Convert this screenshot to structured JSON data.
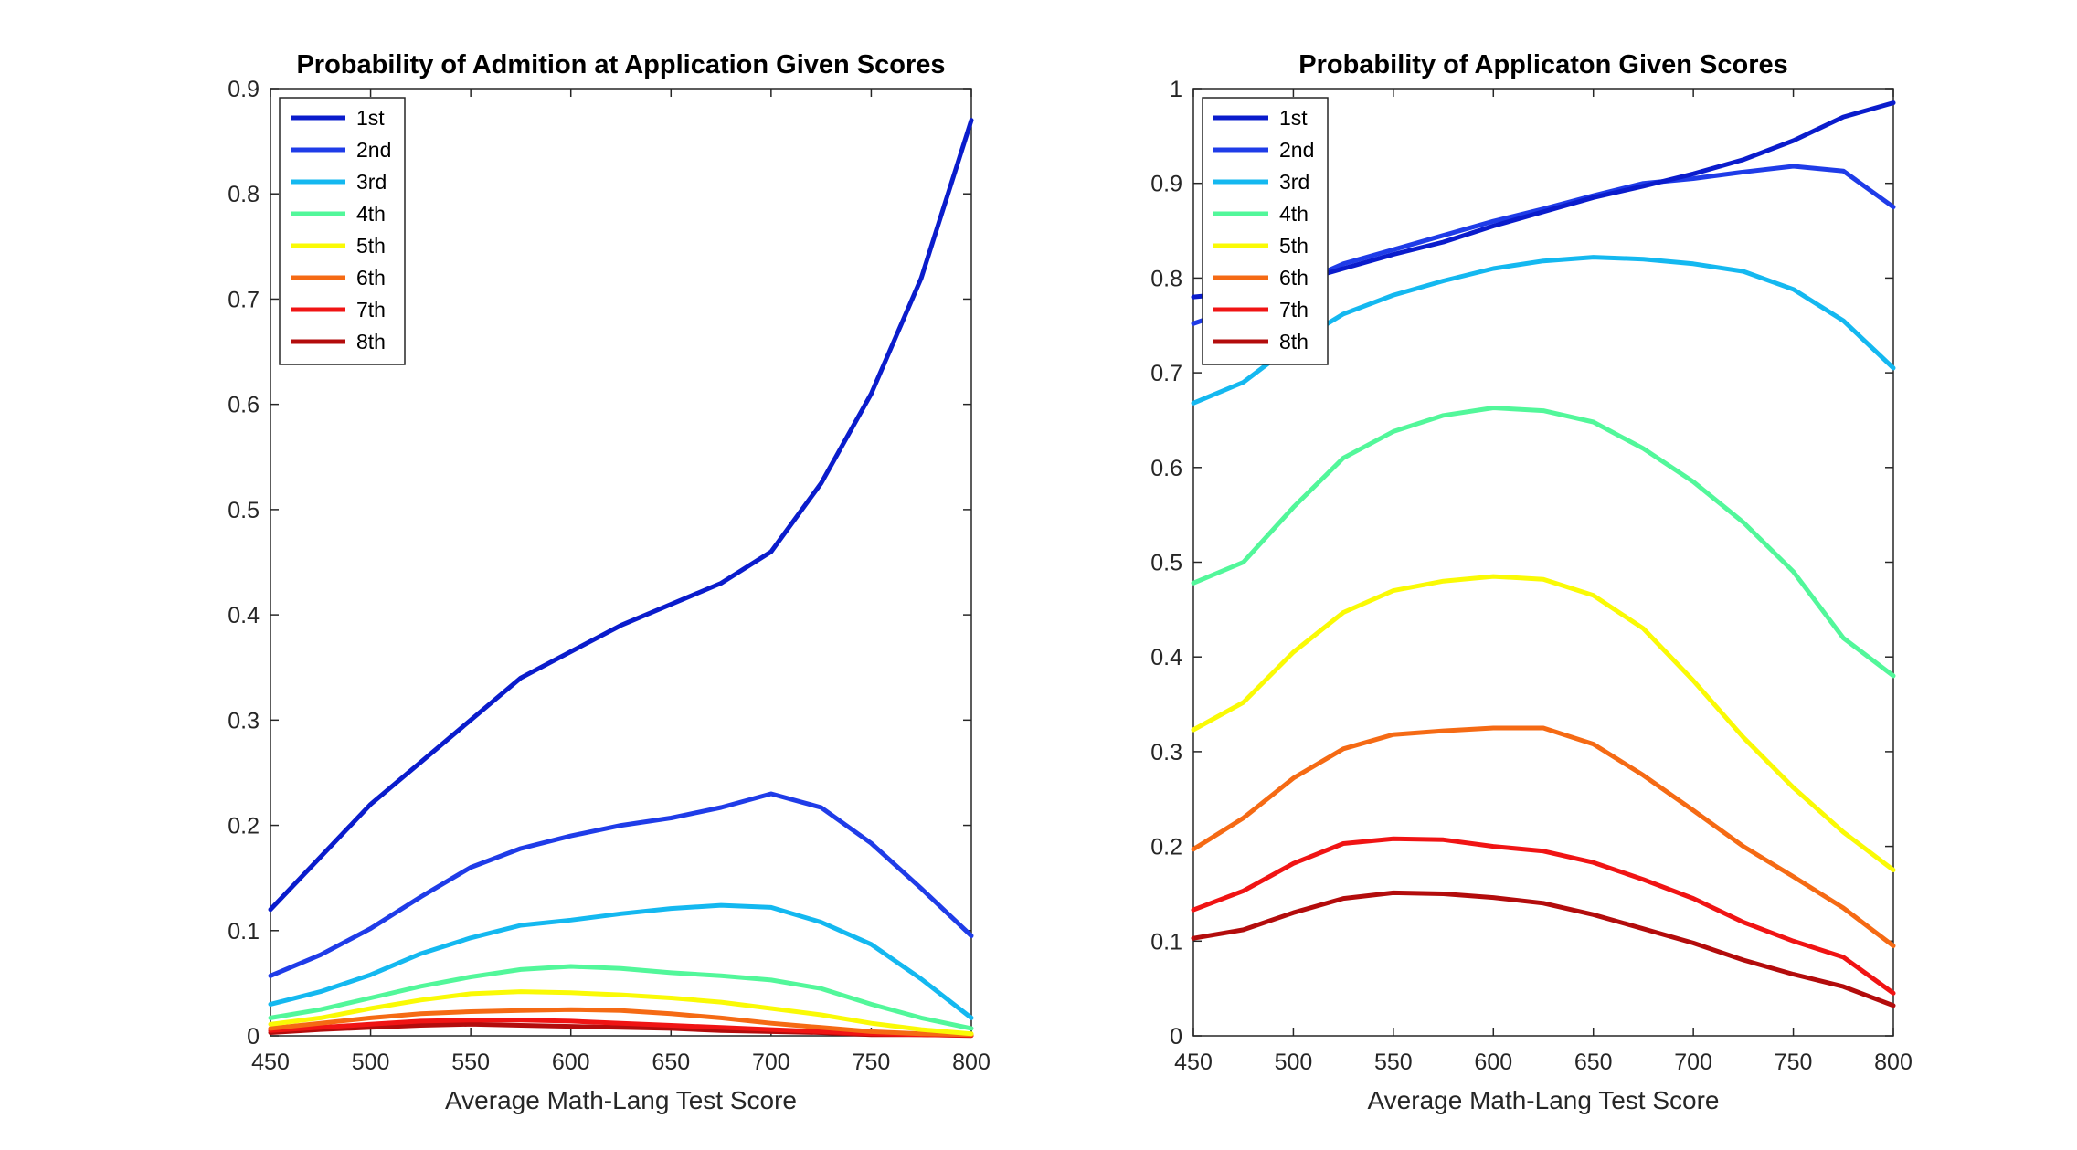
{
  "chart_data": [
    {
      "type": "line",
      "title": "Probability of Admition at Application Given Scores",
      "xlabel": "Average Math-Lang Test Score",
      "ylabel": "",
      "xlim": [
        450,
        800
      ],
      "ylim": [
        0,
        0.9
      ],
      "xticks": [
        "450",
        "500",
        "550",
        "600",
        "650",
        "700",
        "750",
        "800"
      ],
      "yticks": [
        "0",
        "0.1",
        "0.2",
        "0.3",
        "0.4",
        "0.5",
        "0.6",
        "0.7",
        "0.8",
        "0.9"
      ],
      "grid": false,
      "legend_position": "top-left",
      "x": [
        450,
        475,
        500,
        525,
        550,
        575,
        600,
        625,
        650,
        675,
        700,
        725,
        750,
        775,
        800
      ],
      "series": [
        {
          "name": "1st",
          "color": "#0a1ccc",
          "values": [
            0.12,
            0.17,
            0.22,
            0.26,
            0.3,
            0.34,
            0.365,
            0.39,
            0.41,
            0.43,
            0.46,
            0.525,
            0.61,
            0.72,
            0.87
          ]
        },
        {
          "name": "2nd",
          "color": "#1f3ce8",
          "values": [
            0.057,
            0.077,
            0.102,
            0.132,
            0.16,
            0.178,
            0.19,
            0.2,
            0.207,
            0.217,
            0.23,
            0.217,
            0.183,
            0.14,
            0.095
          ]
        },
        {
          "name": "3rd",
          "color": "#14b8f0",
          "values": [
            0.03,
            0.042,
            0.058,
            0.078,
            0.093,
            0.105,
            0.11,
            0.116,
            0.121,
            0.124,
            0.122,
            0.108,
            0.087,
            0.054,
            0.017
          ]
        },
        {
          "name": "4th",
          "color": "#52f79a",
          "values": [
            0.017,
            0.025,
            0.036,
            0.047,
            0.056,
            0.063,
            0.066,
            0.064,
            0.06,
            0.057,
            0.053,
            0.045,
            0.03,
            0.017,
            0.007
          ]
        },
        {
          "name": "5th",
          "color": "#fafa05",
          "values": [
            0.011,
            0.017,
            0.026,
            0.034,
            0.04,
            0.042,
            0.041,
            0.039,
            0.036,
            0.032,
            0.026,
            0.02,
            0.012,
            0.006,
            0.002
          ]
        },
        {
          "name": "6th",
          "color": "#f56a14",
          "values": [
            0.007,
            0.012,
            0.017,
            0.021,
            0.023,
            0.024,
            0.025,
            0.024,
            0.021,
            0.017,
            0.012,
            0.008,
            0.004,
            0.002,
            0.001
          ]
        },
        {
          "name": "7th",
          "color": "#f01414",
          "values": [
            0.005,
            0.008,
            0.011,
            0.014,
            0.015,
            0.015,
            0.014,
            0.012,
            0.01,
            0.008,
            0.006,
            0.004,
            0.002,
            0.001,
            0.0005
          ]
        },
        {
          "name": "8th",
          "color": "#b30c0c",
          "values": [
            0.003,
            0.006,
            0.008,
            0.01,
            0.011,
            0.01,
            0.009,
            0.008,
            0.007,
            0.005,
            0.004,
            0.003,
            0.001,
            0.001,
            0.0003
          ]
        }
      ]
    },
    {
      "type": "line",
      "title": "Probability of Applicaton Given Scores",
      "xlabel": "Average Math-Lang Test Score",
      "ylabel": "",
      "xlim": [
        450,
        800
      ],
      "ylim": [
        0,
        1
      ],
      "xticks": [
        "450",
        "500",
        "550",
        "600",
        "650",
        "700",
        "750",
        "800"
      ],
      "yticks": [
        "0",
        "0.1",
        "0.2",
        "0.3",
        "0.4",
        "0.5",
        "0.6",
        "0.7",
        "0.8",
        "0.9",
        "1"
      ],
      "grid": false,
      "legend_position": "top-left",
      "x": [
        450,
        475,
        500,
        525,
        550,
        575,
        600,
        625,
        650,
        675,
        700,
        725,
        750,
        775,
        800
      ],
      "series": [
        {
          "name": "1st",
          "color": "#0a1ccc",
          "values": [
            0.78,
            0.785,
            0.795,
            0.81,
            0.825,
            0.838,
            0.855,
            0.87,
            0.885,
            0.897,
            0.91,
            0.925,
            0.945,
            0.97,
            0.985
          ]
        },
        {
          "name": "2nd",
          "color": "#1f3ce8",
          "values": [
            0.752,
            0.77,
            0.792,
            0.815,
            0.83,
            0.845,
            0.86,
            0.873,
            0.887,
            0.9,
            0.905,
            0.912,
            0.918,
            0.913,
            0.875
          ]
        },
        {
          "name": "3rd",
          "color": "#14b8f0",
          "values": [
            0.668,
            0.69,
            0.73,
            0.762,
            0.782,
            0.797,
            0.81,
            0.818,
            0.822,
            0.82,
            0.815,
            0.807,
            0.788,
            0.755,
            0.705
          ]
        },
        {
          "name": "4th",
          "color": "#52f79a",
          "values": [
            0.478,
            0.5,
            0.558,
            0.61,
            0.638,
            0.655,
            0.663,
            0.66,
            0.648,
            0.62,
            0.585,
            0.542,
            0.49,
            0.42,
            0.38
          ]
        },
        {
          "name": "5th",
          "color": "#fafa05",
          "values": [
            0.323,
            0.352,
            0.405,
            0.447,
            0.47,
            0.48,
            0.485,
            0.482,
            0.465,
            0.43,
            0.375,
            0.315,
            0.262,
            0.215,
            0.175
          ]
        },
        {
          "name": "6th",
          "color": "#f56a14",
          "values": [
            0.197,
            0.23,
            0.272,
            0.303,
            0.318,
            0.322,
            0.325,
            0.325,
            0.308,
            0.275,
            0.238,
            0.2,
            0.168,
            0.135,
            0.095
          ]
        },
        {
          "name": "7th",
          "color": "#f01414",
          "values": [
            0.133,
            0.153,
            0.182,
            0.203,
            0.208,
            0.207,
            0.2,
            0.195,
            0.183,
            0.165,
            0.145,
            0.12,
            0.1,
            0.083,
            0.045
          ]
        },
        {
          "name": "8th",
          "color": "#b30c0c",
          "values": [
            0.103,
            0.112,
            0.13,
            0.145,
            0.151,
            0.15,
            0.146,
            0.14,
            0.128,
            0.113,
            0.098,
            0.08,
            0.065,
            0.052,
            0.032
          ]
        }
      ]
    }
  ]
}
